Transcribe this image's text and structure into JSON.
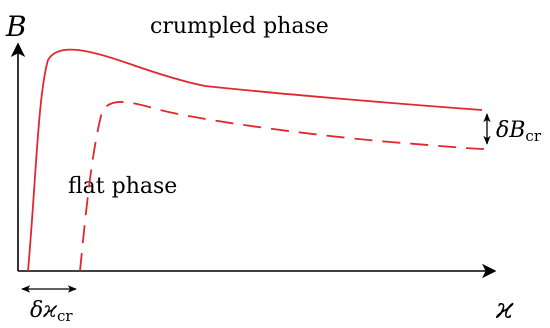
{
  "axes": {
    "y_label": "B",
    "x_label": "ϰ"
  },
  "regions": {
    "upper_label": "crumpled phase",
    "lower_label": "flat phase"
  },
  "annotations": {
    "delta_b_symbol": "δB",
    "delta_b_subscript": "cr",
    "delta_kappa_symbol": "δϰ",
    "delta_kappa_subscript": "cr"
  },
  "curves": [
    {
      "name": "crumpled-phase-boundary",
      "style": "solid"
    },
    {
      "name": "flat-phase-boundary",
      "style": "dashed"
    }
  ],
  "colors": {
    "curve": "#e0282e",
    "axis": "#000000",
    "text": "#000000"
  }
}
